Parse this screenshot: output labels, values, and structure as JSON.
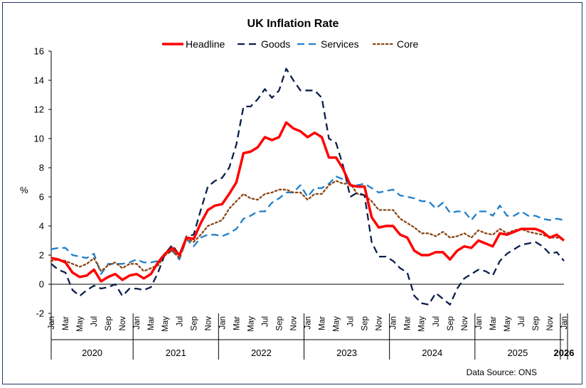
{
  "chart_data": {
    "type": "line",
    "title": "UK Inflation Rate",
    "ylabel": "%",
    "xlabel": "",
    "ylim": [
      -2,
      16
    ],
    "yticks": [
      -2,
      0,
      2,
      4,
      6,
      8,
      10,
      12,
      14,
      16
    ],
    "grid": false,
    "legend_position": "top",
    "source": "Data Source: ONS",
    "x_start": "2020-01",
    "month_tick_labels": [
      "Jan",
      "Mar",
      "May",
      "Jul",
      "Sep",
      "Nov"
    ],
    "years": [
      "2020",
      "2021",
      "2022",
      "2023",
      "2024",
      "2025",
      "2026"
    ],
    "x": [
      "2020-01",
      "2020-02",
      "2020-03",
      "2020-04",
      "2020-05",
      "2020-06",
      "2020-07",
      "2020-08",
      "2020-09",
      "2020-10",
      "2020-11",
      "2020-12",
      "2021-01",
      "2021-02",
      "2021-03",
      "2021-04",
      "2021-05",
      "2021-06",
      "2021-07",
      "2021-08",
      "2021-09",
      "2021-10",
      "2021-11",
      "2021-12",
      "2022-01",
      "2022-02",
      "2022-03",
      "2022-04",
      "2022-05",
      "2022-06",
      "2022-07",
      "2022-08",
      "2022-09",
      "2022-10",
      "2022-11",
      "2022-12",
      "2023-01",
      "2023-02",
      "2023-03",
      "2023-04",
      "2023-05",
      "2023-06",
      "2023-07",
      "2023-08",
      "2023-09",
      "2023-10",
      "2023-11",
      "2023-12",
      "2024-01",
      "2024-02",
      "2024-03",
      "2024-04",
      "2024-05",
      "2024-06",
      "2024-07",
      "2024-08",
      "2024-09",
      "2024-10",
      "2024-11",
      "2024-12",
      "2025-01",
      "2025-02",
      "2025-03",
      "2025-04",
      "2025-05",
      "2025-06",
      "2025-07",
      "2025-08",
      "2025-09",
      "2025-10",
      "2025-11",
      "2025-12",
      "2026-01"
    ],
    "series": [
      {
        "name": "Headline",
        "color": "#ff0000",
        "style": "solid",
        "values": [
          1.8,
          1.7,
          1.5,
          0.8,
          0.5,
          0.6,
          1.0,
          0.2,
          0.5,
          0.7,
          0.3,
          0.6,
          0.7,
          0.4,
          0.7,
          1.5,
          2.1,
          2.5,
          2.0,
          3.2,
          3.1,
          4.2,
          5.1,
          5.4,
          5.5,
          6.2,
          7.0,
          9.0,
          9.1,
          9.4,
          10.1,
          9.9,
          10.1,
          11.1,
          10.7,
          10.5,
          10.1,
          10.4,
          10.1,
          8.7,
          8.7,
          7.9,
          6.8,
          6.7,
          6.7,
          4.6,
          3.9,
          4.0,
          4.0,
          3.4,
          3.2,
          2.3,
          2.0,
          2.0,
          2.2,
          2.2,
          1.7,
          2.3,
          2.6,
          2.5,
          3.0,
          2.8,
          2.6,
          3.5,
          3.4,
          3.6,
          3.8,
          3.8,
          3.8,
          3.6,
          3.2,
          3.4,
          3.0
        ]
      },
      {
        "name": "Goods",
        "color": "#0b1f4d",
        "style": "dash",
        "values": [
          1.4,
          1.0,
          0.8,
          -0.4,
          -0.8,
          -0.4,
          -0.1,
          -0.3,
          -0.2,
          0.0,
          -0.8,
          -0.3,
          -0.3,
          -0.4,
          -0.2,
          0.8,
          2.1,
          2.7,
          2.0,
          3.3,
          3.4,
          5.1,
          6.7,
          7.1,
          7.3,
          8.0,
          9.6,
          12.2,
          12.2,
          12.7,
          13.4,
          12.8,
          13.3,
          14.8,
          14.0,
          13.3,
          13.3,
          13.3,
          12.8,
          10.0,
          9.7,
          8.1,
          6.0,
          6.3,
          6.1,
          2.9,
          1.9,
          1.9,
          1.6,
          1.1,
          0.8,
          -0.8,
          -1.3,
          -1.4,
          -0.6,
          -1.0,
          -1.4,
          -0.3,
          0.4,
          0.7,
          1.0,
          0.9,
          0.6,
          1.6,
          2.1,
          2.4,
          2.7,
          2.8,
          2.9,
          2.6,
          2.1,
          2.2,
          1.6
        ]
      },
      {
        "name": "Services",
        "color": "#1f7fc9",
        "style": "dash",
        "values": [
          2.4,
          2.5,
          2.5,
          2.0,
          1.9,
          1.8,
          2.1,
          0.7,
          1.4,
          1.4,
          1.4,
          1.5,
          1.7,
          1.5,
          1.5,
          1.6,
          2.1,
          2.3,
          1.7,
          3.1,
          2.6,
          3.2,
          3.4,
          3.4,
          3.3,
          3.5,
          3.8,
          4.5,
          4.7,
          5.0,
          5.0,
          5.6,
          5.9,
          6.3,
          6.3,
          6.8,
          6.0,
          6.6,
          6.6,
          6.9,
          7.4,
          7.2,
          6.8,
          6.8,
          6.9,
          6.6,
          6.3,
          6.4,
          6.5,
          6.1,
          6.0,
          5.9,
          5.7,
          5.7,
          5.2,
          5.6,
          4.9,
          5.0,
          5.0,
          4.4,
          5.0,
          5.0,
          4.7,
          5.4,
          4.7,
          4.7,
          5.0,
          4.7,
          4.7,
          4.5,
          4.4,
          4.5,
          4.4
        ]
      },
      {
        "name": "Core",
        "color": "#8b4513",
        "style": "dot",
        "values": [
          1.6,
          1.7,
          1.6,
          1.4,
          1.2,
          1.4,
          1.8,
          0.9,
          1.3,
          1.5,
          1.1,
          1.4,
          1.4,
          0.9,
          1.1,
          1.3,
          2.0,
          2.3,
          1.8,
          3.1,
          2.9,
          3.4,
          4.0,
          4.2,
          4.4,
          5.2,
          5.7,
          6.2,
          5.9,
          5.8,
          6.2,
          6.3,
          6.5,
          6.5,
          6.3,
          6.3,
          5.8,
          6.2,
          6.2,
          6.8,
          7.1,
          6.9,
          6.9,
          6.2,
          6.1,
          5.7,
          5.1,
          5.1,
          5.1,
          4.5,
          4.2,
          3.9,
          3.5,
          3.5,
          3.3,
          3.6,
          3.2,
          3.3,
          3.5,
          3.2,
          3.7,
          3.5,
          3.4,
          3.8,
          3.5,
          3.7,
          3.8,
          3.6,
          3.5,
          3.4,
          3.2,
          3.2,
          3.1
        ]
      }
    ]
  }
}
